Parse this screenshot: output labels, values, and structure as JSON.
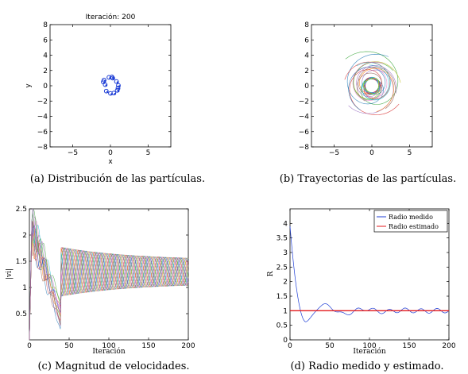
{
  "chart_data": [
    {
      "id": "a",
      "type": "scatter",
      "title": "Iteración: 200",
      "xlabel": "x",
      "ylabel": "y",
      "xlim": [
        -8,
        8
      ],
      "ylim": [
        -8,
        8
      ],
      "xticks": [
        -5,
        0,
        5
      ],
      "yticks": [
        -8,
        -6,
        -4,
        -2,
        0,
        2,
        4,
        6,
        8
      ],
      "grid": false,
      "series": [
        {
          "x": [
            -0.95,
            -0.7,
            -0.2,
            0.3,
            0.8,
            1.05,
            0.9,
            0.45,
            0.0,
            -0.55,
            -0.85,
            1.0,
            0.2
          ],
          "y": [
            0.5,
            0.15,
            1.1,
            1.0,
            0.55,
            0.05,
            -0.6,
            -0.95,
            -1.0,
            -0.7,
            0.75,
            -0.3,
            1.15
          ],
          "color": "#1f3fd6"
        }
      ],
      "caption": "(a)  Distribución de las partículas."
    },
    {
      "id": "b",
      "type": "line",
      "title": "",
      "xlabel": "",
      "ylabel": "",
      "xlim": [
        -8,
        8
      ],
      "ylim": [
        -8,
        8
      ],
      "xticks": [
        -5,
        0,
        5
      ],
      "yticks": [
        -8,
        -6,
        -4,
        -2,
        0,
        2,
        4,
        6,
        8
      ],
      "grid": false,
      "description_points": {
        "starts": [
          [
            -3.5,
            3.5
          ],
          [
            2.2,
            3.8
          ],
          [
            3.6,
            -2.4
          ],
          [
            -3.1,
            -2.6
          ],
          [
            -0.4,
            2.7
          ],
          [
            3.8,
            0.4
          ],
          [
            -2.5,
            1.2
          ],
          [
            1.8,
            -3.0
          ],
          [
            -1.5,
            -3.2
          ],
          [
            2.8,
            2.0
          ],
          [
            -3.6,
            0.8
          ],
          [
            0.6,
            -3.4
          ],
          [
            -2.0,
            2.6
          ],
          [
            3.2,
            -1.0
          ],
          [
            -0.9,
            -2.0
          ],
          [
            1.5,
            2.9
          ]
        ],
        "colors": [
          "#2ca02c",
          "#1f77b4",
          "#d62728",
          "#9467bd",
          "#17becf",
          "#bcbd22",
          "#e377c2",
          "#8c564b",
          "#1f77b4",
          "#2ca02c",
          "#d62728",
          "#ff7f0e",
          "#17becf",
          "#9467bd",
          "#8c564b",
          "#e377c2"
        ]
      },
      "caption": "(b)  Trayectorias de las partículas."
    },
    {
      "id": "c",
      "type": "line",
      "title": "",
      "xlabel": "Iteración",
      "ylabel": "|vi|",
      "xlim": [
        0,
        200
      ],
      "ylim": [
        0,
        2.5
      ],
      "xticks": [
        0,
        50,
        100,
        150,
        200
      ],
      "yticks": [
        0.5,
        1,
        1.5,
        2,
        2.5
      ],
      "grid": false,
      "series_summary": {
        "count": 14,
        "peak_range": [
          2.0,
          2.5
        ],
        "oscillation_center": 1.3,
        "oscillation_amplitude": 0.22,
        "oscillation_period": 20,
        "colors": [
          "#1f77b4",
          "#2ca02c",
          "#d62728",
          "#9467bd",
          "#ff7f0e",
          "#17becf",
          "#8c564b",
          "#e377c2",
          "#bcbd22",
          "#7f7f7f",
          "#1f3fd6",
          "#3fa03f",
          "#c44",
          "#aa66cc"
        ]
      },
      "caption": "(c)  Magnitud de velocidades."
    },
    {
      "id": "d",
      "type": "line",
      "title": "",
      "xlabel": "Iteración",
      "ylabel": "R",
      "xlim": [
        0,
        200
      ],
      "ylim": [
        0,
        4.5
      ],
      "xticks": [
        0,
        50,
        100,
        150,
        200
      ],
      "yticks": [
        0,
        0.5,
        1,
        1.5,
        2,
        2.5,
        3,
        3.5,
        4
      ],
      "grid": false,
      "legend": {
        "placement": "top-right"
      },
      "series": [
        {
          "name": "Radio medido",
          "color": "#1f3fd6"
        },
        {
          "name": "Radio estimado",
          "color": "#e41a1c",
          "value": 1.0
        }
      ],
      "measured_summary": {
        "start": 3.9,
        "min_at": 20,
        "min_value": 0.62,
        "settle": 1.0,
        "oscillation_amplitude": 0.08,
        "oscillation_period": 20
      },
      "caption": "(d)  Radio medido y estimado."
    }
  ]
}
